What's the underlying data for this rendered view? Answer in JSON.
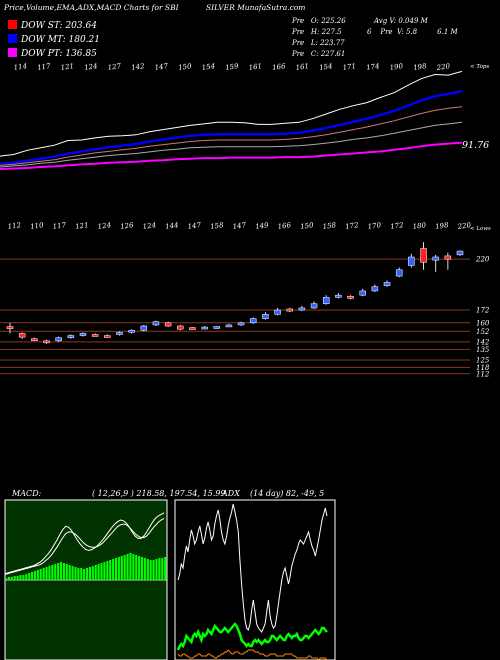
{
  "header": {
    "title": "Price,Volume,EMA,ADX,MACD Charts for SBI",
    "subtitle": "SILVER MunafaSutra.com",
    "ohlc": [
      {
        "label": "Pre",
        "value": "O: 225.26"
      },
      {
        "label": "Pre",
        "value": "H: 227.5"
      },
      {
        "label": "Pre",
        "value": "L: 223.77"
      },
      {
        "label": "Pre",
        "value": "C: 227.61"
      }
    ],
    "avg_volume": "Avg V: 0.049 M",
    "volume_row": {
      "num": "6",
      "label": "Pre",
      "value": "V: 5.8",
      "m": "6.1 M"
    }
  },
  "dow_legend": [
    {
      "label": "DOW ST: 203.64",
      "color": "#ff0000"
    },
    {
      "label": "DOW MT: 180.21",
      "color": "#0000ff"
    },
    {
      "label": "DOW PT: 136.85",
      "color": "#ff00ff"
    }
  ],
  "chart_data": [
    {
      "type": "line",
      "title": "",
      "top_axis_labels": [
        "114",
        "117",
        "121",
        "124",
        "127",
        "142",
        "147",
        "150",
        "154",
        "159",
        "161",
        "166",
        "161",
        "154",
        "171",
        "174",
        "190",
        "198",
        "220"
      ],
      "top_axis_end": "< Tops",
      "value_label": "91.76",
      "series": [
        {
          "color": "#ffffff",
          "values": [
            75,
            78,
            86,
            91,
            96,
            105,
            106,
            110,
            113,
            114,
            116,
            122,
            126,
            130,
            134,
            137,
            140,
            140,
            139,
            136,
            136,
            138,
            140,
            147,
            156,
            165,
            172,
            178,
            188,
            197,
            211,
            224,
            232,
            231,
            238
          ]
        },
        {
          "color": "#0000ff",
          "values": [
            60,
            62,
            66,
            70,
            74,
            80,
            84,
            88,
            92,
            95,
            98,
            103,
            107,
            111,
            114,
            116,
            117,
            117,
            117,
            117,
            117,
            118,
            120,
            124,
            129,
            135,
            141,
            147,
            154,
            162,
            172,
            182,
            190,
            195,
            200
          ]
        },
        {
          "color": "#cc7777",
          "values": [
            57,
            59,
            62,
            65,
            68,
            73,
            77,
            81,
            84,
            87,
            90,
            94,
            97,
            100,
            103,
            105,
            106,
            106,
            106,
            106,
            106,
            107,
            109,
            112,
            116,
            121,
            126,
            131,
            137,
            143,
            150,
            157,
            163,
            167,
            170
          ]
        },
        {
          "color": "#aaaaaa",
          "values": [
            54,
            56,
            58,
            61,
            63,
            67,
            70,
            73,
            76,
            78,
            80,
            83,
            86,
            88,
            91,
            92,
            93,
            93,
            93,
            93,
            93,
            94,
            95,
            97,
            100,
            103,
            107,
            110,
            114,
            119,
            124,
            129,
            134,
            137,
            140
          ]
        },
        {
          "color": "#ff00ff",
          "values": [
            50,
            51,
            52,
            54,
            55,
            57,
            59,
            60,
            62,
            63,
            64,
            66,
            67,
            69,
            70,
            71,
            71,
            72,
            72,
            72,
            72,
            73,
            73,
            74,
            76,
            78,
            80,
            82,
            84,
            87,
            90,
            94,
            97,
            99,
            101
          ]
        }
      ]
    },
    {
      "type": "candlestick",
      "title": "",
      "low_axis_labels": [
        "112",
        "110",
        "117",
        "121",
        "124",
        "126",
        "124",
        "144",
        "147",
        "158",
        "147",
        "149",
        "166",
        "150",
        "158",
        "172",
        "170",
        "172",
        "180",
        "198",
        "220"
      ],
      "low_axis_end": "< Lows",
      "ylim": [
        108,
        238
      ],
      "price_levels": [
        220,
        172,
        160,
        152,
        142,
        135,
        125,
        118,
        112
      ],
      "candles": [
        {
          "o": 156.5,
          "h": 160.0,
          "l": 150.0,
          "c": 154.5,
          "bull": false
        },
        {
          "o": 150.0,
          "h": 151.0,
          "l": 145.0,
          "c": 146.5,
          "bull": false
        },
        {
          "o": 145.0,
          "h": 146.0,
          "l": 143.0,
          "c": 144.0,
          "bull": false
        },
        {
          "o": 142.0,
          "h": 144.0,
          "l": 140.0,
          "c": 143.0,
          "bull": false
        },
        {
          "o": 143.0,
          "h": 147.0,
          "l": 142.0,
          "c": 146.0,
          "bull": true
        },
        {
          "o": 146.0,
          "h": 149.0,
          "l": 145.0,
          "c": 148.0,
          "bull": true
        },
        {
          "o": 148.0,
          "h": 151.0,
          "l": 147.0,
          "c": 150.0,
          "bull": true
        },
        {
          "o": 149.0,
          "h": 150.0,
          "l": 147.5,
          "c": 148.0,
          "bull": false
        },
        {
          "o": 148.0,
          "h": 149.0,
          "l": 146.5,
          "c": 147.5,
          "bull": false
        },
        {
          "o": 149.0,
          "h": 152.0,
          "l": 148.0,
          "c": 151.0,
          "bull": true
        },
        {
          "o": 151.0,
          "h": 154.0,
          "l": 150.0,
          "c": 153.0,
          "bull": true
        },
        {
          "o": 153.0,
          "h": 158.0,
          "l": 152.0,
          "c": 157.0,
          "bull": true
        },
        {
          "o": 158.0,
          "h": 162.0,
          "l": 157.0,
          "c": 161.0,
          "bull": true
        },
        {
          "o": 160.0,
          "h": 161.0,
          "l": 156.0,
          "c": 157.0,
          "bull": false
        },
        {
          "o": 157.0,
          "h": 158.0,
          "l": 153.0,
          "c": 154.0,
          "bull": false
        },
        {
          "o": 155.0,
          "h": 156.0,
          "l": 154.0,
          "c": 155.5,
          "bull": false
        },
        {
          "o": 155.0,
          "h": 157.0,
          "l": 154.0,
          "c": 156.0,
          "bull": true
        },
        {
          "o": 156.0,
          "h": 157.0,
          "l": 155.0,
          "c": 156.5,
          "bull": true
        },
        {
          "o": 157.0,
          "h": 159.0,
          "l": 156.0,
          "c": 158.0,
          "bull": true
        },
        {
          "o": 158.0,
          "h": 161.0,
          "l": 157.0,
          "c": 160.0,
          "bull": true
        },
        {
          "o": 160.0,
          "h": 165.0,
          "l": 159.0,
          "c": 164.0,
          "bull": true
        },
        {
          "o": 164.0,
          "h": 170.0,
          "l": 163.0,
          "c": 168.0,
          "bull": true
        },
        {
          "o": 168.0,
          "h": 174.0,
          "l": 167.0,
          "c": 172.0,
          "bull": true
        },
        {
          "o": 173.0,
          "h": 174.0,
          "l": 170.0,
          "c": 171.0,
          "bull": false
        },
        {
          "o": 172.0,
          "h": 176.0,
          "l": 171.0,
          "c": 174.0,
          "bull": true
        },
        {
          "o": 174.0,
          "h": 180.0,
          "l": 173.0,
          "c": 178.0,
          "bull": true
        },
        {
          "o": 178.0,
          "h": 186.0,
          "l": 177.0,
          "c": 184.0,
          "bull": true
        },
        {
          "o": 184.0,
          "h": 188.0,
          "l": 183.0,
          "c": 186.0,
          "bull": true
        },
        {
          "o": 185.0,
          "h": 186.0,
          "l": 182.0,
          "c": 183.0,
          "bull": false
        },
        {
          "o": 186.0,
          "h": 192.0,
          "l": 185.0,
          "c": 190.0,
          "bull": true
        },
        {
          "o": 190.0,
          "h": 196.0,
          "l": 189.0,
          "c": 194.0,
          "bull": true
        },
        {
          "o": 195.0,
          "h": 200.0,
          "l": 194.0,
          "c": 198.0,
          "bull": true
        },
        {
          "o": 204.0,
          "h": 212.0,
          "l": 203.0,
          "c": 210.0,
          "bull": true
        },
        {
          "o": 214.0,
          "h": 225.0,
          "l": 212.0,
          "c": 222.0,
          "bull": true
        },
        {
          "o": 230.0,
          "h": 236.0,
          "l": 210.0,
          "c": 217.0,
          "bull": false
        },
        {
          "o": 222.0,
          "h": 224.0,
          "l": 208.0,
          "c": 219.0,
          "bull": true
        },
        {
          "o": 223.0,
          "h": 226.0,
          "l": 210.0,
          "c": 220.0,
          "bull": false
        },
        {
          "o": 224.0,
          "h": 228.0,
          "l": 223.0,
          "c": 227.6,
          "bull": true
        }
      ]
    },
    {
      "type": "area",
      "title": "MACD:",
      "params": "( 12,26,9 ) 218.58,  197.54,  15.99",
      "series": [
        {
          "name": "histogram",
          "color": "#00ff00",
          "values": [
            2,
            3,
            3,
            4,
            4,
            5,
            5,
            6,
            7,
            8,
            9,
            10,
            11,
            12,
            13,
            14,
            15,
            16,
            17,
            18,
            17,
            16,
            15,
            14,
            13,
            12,
            12,
            11,
            12,
            13,
            14,
            15,
            16,
            17,
            18,
            19,
            20,
            21,
            22,
            23,
            24,
            25,
            26,
            27,
            26,
            25,
            24,
            23,
            22,
            21,
            20,
            20,
            21,
            22,
            22,
            23
          ]
        },
        {
          "name": "macd",
          "color": "#ffffff",
          "values": [
            8,
            9,
            10,
            11,
            12,
            13,
            14,
            15,
            16,
            17,
            18,
            20,
            22,
            25,
            29,
            33,
            38,
            44,
            50,
            57,
            63,
            67,
            66,
            62,
            56,
            50,
            45,
            41,
            38,
            37,
            38,
            40,
            43,
            47,
            51,
            56,
            61,
            66,
            70,
            73,
            75,
            74,
            71,
            66,
            60,
            55,
            52,
            52,
            55,
            60,
            66,
            72,
            77,
            80,
            82,
            84
          ]
        },
        {
          "name": "signal",
          "color": "#ffffff",
          "values": [
            7,
            8,
            9,
            10,
            11,
            12,
            13,
            14,
            15,
            16,
            17,
            18,
            19,
            21,
            24,
            27,
            31,
            36,
            41,
            47,
            53,
            58,
            60,
            60,
            58,
            55,
            51,
            47,
            44,
            42,
            41,
            41,
            42,
            44,
            47,
            51,
            55,
            59,
            63,
            67,
            69,
            70,
            69,
            66,
            62,
            58,
            55,
            53,
            53,
            55,
            59,
            64,
            68,
            72,
            75,
            77
          ]
        }
      ]
    },
    {
      "type": "line",
      "title": "ADX",
      "params": "(14 day) 82,  -49,  5",
      "series": [
        {
          "name": "adx",
          "color": "#ffffff",
          "values": [
            40,
            43,
            48,
            46,
            52,
            57,
            54,
            60,
            65,
            62,
            58,
            60,
            64,
            67,
            63,
            58,
            61,
            66,
            69,
            65,
            60,
            62,
            68,
            72,
            75,
            70,
            64,
            60,
            58,
            62,
            67,
            71,
            74,
            78,
            74,
            70,
            64,
            50,
            38,
            28,
            20,
            16,
            15,
            18,
            25,
            30,
            24,
            18,
            16,
            15,
            14,
            16,
            18,
            24,
            30,
            22,
            18,
            16,
            17,
            22,
            28,
            34,
            40,
            44,
            46,
            42,
            38,
            42,
            47,
            50,
            53,
            55,
            58,
            60,
            59,
            58,
            60,
            62,
            64,
            60,
            57,
            55,
            52,
            56,
            60,
            65,
            70,
            73,
            76,
            72
          ]
        },
        {
          "name": "di-plus",
          "color": "#00ff00",
          "values": [
            5,
            7,
            8,
            7,
            9,
            12,
            11,
            10,
            9,
            12,
            13,
            12,
            14,
            12,
            10,
            13,
            12,
            13,
            15,
            14,
            13,
            15,
            17,
            16,
            15,
            14,
            14,
            15,
            16,
            15,
            14,
            15,
            16,
            17,
            18,
            17,
            15,
            13,
            10,
            9,
            8,
            7,
            8,
            7,
            7,
            9,
            10,
            9,
            10,
            9,
            8,
            9,
            10,
            9,
            9,
            10,
            12,
            12,
            11,
            10,
            11,
            12,
            11,
            10,
            10,
            12,
            13,
            12,
            11,
            12,
            12,
            13,
            11,
            10,
            10,
            11,
            12,
            12,
            11,
            12,
            13,
            14,
            15,
            14,
            13,
            14,
            16,
            16,
            15,
            14
          ]
        },
        {
          "name": "di-minus",
          "color": "#ff8800",
          "values": [
            3,
            2,
            2,
            3,
            3,
            2,
            2,
            1,
            1,
            1,
            2,
            2,
            3,
            3,
            2,
            2,
            2,
            2,
            3,
            3,
            2,
            2,
            1,
            1,
            2,
            2,
            3,
            3,
            4,
            4,
            5,
            4,
            3,
            3,
            4,
            4,
            4,
            3,
            3,
            3,
            4,
            4,
            5,
            5,
            5,
            5,
            4,
            4,
            4,
            3,
            3,
            3,
            2,
            2,
            2,
            3,
            3,
            3,
            3,
            2,
            2,
            2,
            2,
            2,
            3,
            3,
            3,
            3,
            3,
            2,
            2,
            1,
            1,
            1,
            1,
            1,
            1,
            1,
            2,
            2,
            1,
            1,
            1,
            1,
            0,
            1,
            1,
            1,
            1,
            0
          ]
        }
      ]
    }
  ]
}
